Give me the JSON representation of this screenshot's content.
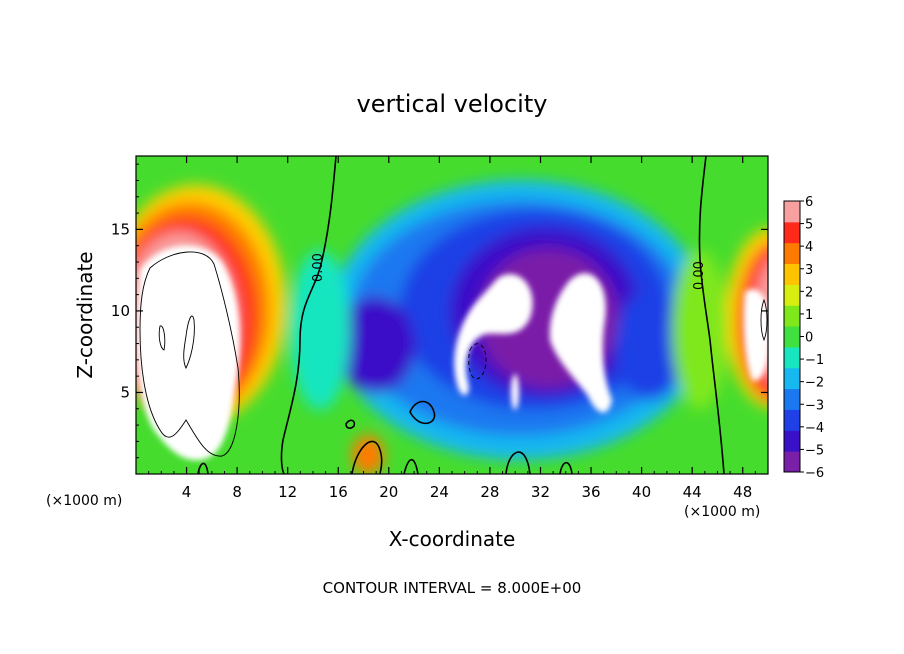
{
  "chart_data": {
    "type": "heatmap",
    "title": "vertical velocity",
    "xlabel": "X-coordinate",
    "ylabel": "Z-coordinate",
    "x_unit": "(×1000 m)",
    "x_unit_right": "(×1000 m)",
    "xlim": [
      0,
      50
    ],
    "ylim": [
      0,
      19.5
    ],
    "x_ticks": [
      4,
      8,
      12,
      16,
      20,
      24,
      28,
      32,
      36,
      40,
      44,
      48
    ],
    "y_ticks": [
      5,
      10,
      15
    ],
    "colorbar": {
      "min": -6,
      "max": 6,
      "ticks": [
        6,
        5,
        4,
        3,
        2,
        1,
        0,
        -1,
        -2,
        -3,
        -4,
        -5,
        -6
      ],
      "tick_labels": [
        "6",
        "5",
        "4",
        "3",
        "2",
        "1",
        "0",
        "−1",
        "−2",
        "−3",
        "−4",
        "−5",
        "−6"
      ],
      "colors": [
        "#7a1fa8",
        "#3a10c8",
        "#1f40e6",
        "#1a78f0",
        "#17b8f0",
        "#18e6c0",
        "#40e040",
        "#7ee81a",
        "#d8ee10",
        "#ffc400",
        "#ff7a00",
        "#ff2a1a",
        "#f8a0a0"
      ]
    },
    "contour_labels": [
      "0.00",
      "0.00"
    ],
    "contour_label_x": [
      14.5,
      44.5
    ],
    "contour_interval_text": "CONTOUR INTERVAL = 8.000E+00",
    "grid": false
  }
}
